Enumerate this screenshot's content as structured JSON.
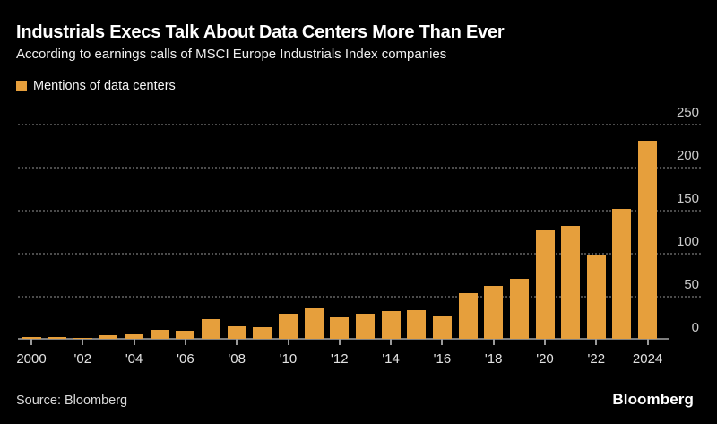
{
  "header": {
    "title": "Industrials Execs Talk About Data Centers More Than Ever",
    "subtitle": "According to earnings calls of MSCI Europe Industrials Index companies"
  },
  "legend": {
    "label": "Mentions of data centers",
    "swatch_color": "#E69F3C"
  },
  "chart_data": {
    "type": "bar",
    "title": "Industrials Execs Talk About Data Centers More Than Ever",
    "subtitle": "According to earnings calls of MSCI Europe Industrials Index companies",
    "series_name": "Mentions of data centers",
    "x": [
      2000,
      2001,
      2002,
      2003,
      2004,
      2005,
      2006,
      2007,
      2008,
      2009,
      2010,
      2011,
      2012,
      2013,
      2014,
      2015,
      2016,
      2017,
      2018,
      2019,
      2020,
      2021,
      2022,
      2023,
      2024
    ],
    "values": [
      2,
      2,
      1,
      4,
      5,
      10,
      9,
      23,
      15,
      14,
      29,
      35,
      25,
      29,
      32,
      33,
      27,
      53,
      61,
      70,
      126,
      131,
      97,
      151,
      230
    ],
    "xlabel": "",
    "ylabel": "",
    "ylim": [
      0,
      250
    ],
    "yticks": [
      0,
      50,
      100,
      150,
      200,
      250
    ],
    "xtick_years": [
      2000,
      2002,
      2004,
      2006,
      2008,
      2010,
      2012,
      2014,
      2016,
      2018,
      2020,
      2022,
      2024
    ],
    "xtick_labels": [
      "2000",
      "'02",
      "'04",
      "'06",
      "'08",
      "'10",
      "'12",
      "'14",
      "'16",
      "'18",
      "'20",
      "'22",
      "2024"
    ],
    "bar_color": "#E69F3C",
    "grid": "horizontal-dotted",
    "gridline_color": "#4b4b4b",
    "axis_label_color": "#cbcbcb",
    "legend_position": "top-left",
    "background_color": "#000000"
  },
  "footer": {
    "source": "Source: Bloomberg",
    "brand": "Bloomberg"
  }
}
